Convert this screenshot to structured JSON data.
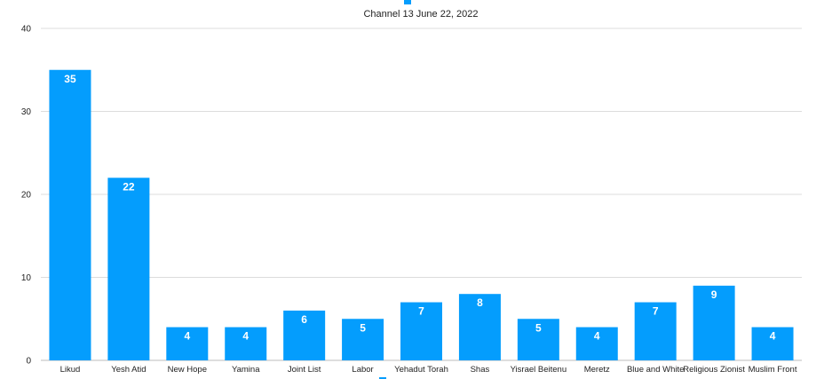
{
  "chart_data": {
    "type": "bar",
    "legend": {
      "position": "top",
      "series_name": "Channel 13 June 22, 2022"
    },
    "categories": [
      "Likud",
      "Yesh Atid",
      "New Hope",
      "Yamina",
      "Joint List",
      "Labor",
      "Yehadut Torah",
      "Shas",
      "Yisrael Beitenu",
      "Meretz",
      "Blue and White",
      "Religious Zionist",
      "Muslim Front"
    ],
    "series": [
      {
        "name": "Channel 13 June 22, 2022",
        "color": "#049dfd",
        "values": [
          35,
          22,
          4,
          4,
          6,
          5,
          7,
          8,
          5,
          4,
          7,
          9,
          4
        ]
      }
    ],
    "ylim": [
      0,
      40
    ],
    "yticks": [
      0,
      10,
      20,
      30,
      40
    ],
    "grid": true,
    "data_labels": true
  }
}
